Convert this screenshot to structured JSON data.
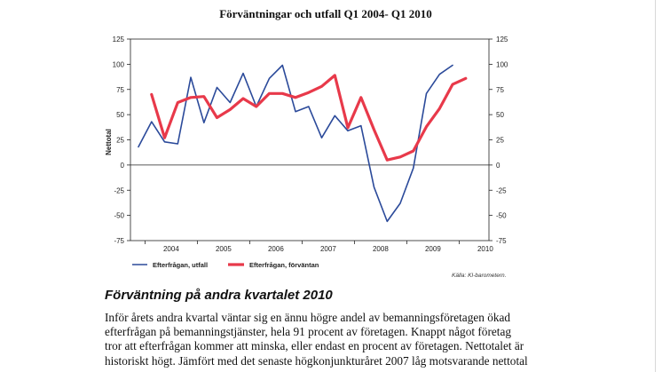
{
  "chart_data": {
    "type": "line",
    "title": "Förväntningar och utfall Q1 2004- Q1 2010",
    "ylabel": "Nettotal",
    "xlabel": "",
    "ylim": [
      -75,
      125
    ],
    "yticks": [
      125,
      100,
      75,
      50,
      25,
      0,
      -25,
      -50,
      -75
    ],
    "xtick_labels": [
      "2004",
      "2005",
      "2006",
      "2007",
      "2008",
      "2009",
      "2010"
    ],
    "grid": false,
    "legend_position": "bottom-left",
    "source": "Källa: KI-barometern.",
    "series": [
      {
        "name": "Efterfrågan, utfall",
        "color": "#2b4a9a",
        "x": [
          "2003Q4",
          "2004Q1",
          "2004Q2",
          "2004Q3",
          "2004Q4",
          "2005Q1",
          "2005Q2",
          "2005Q3",
          "2005Q4",
          "2006Q1",
          "2006Q2",
          "2006Q3",
          "2006Q4",
          "2007Q1",
          "2007Q2",
          "2007Q3",
          "2007Q4",
          "2008Q1",
          "2008Q2",
          "2008Q3",
          "2008Q4",
          "2009Q1",
          "2009Q2",
          "2009Q3",
          "2009Q4",
          "2010Q1"
        ],
        "values": [
          18,
          43,
          23,
          21,
          87,
          42,
          77,
          62,
          91,
          58,
          86,
          99,
          53,
          58,
          27,
          49,
          34,
          39,
          -22,
          -56,
          -38,
          -3,
          71,
          90,
          99,
          null
        ]
      },
      {
        "name": "Efterfrågan, förväntan",
        "color": "#e8394a",
        "x": [
          "2003Q4",
          "2004Q1",
          "2004Q2",
          "2004Q3",
          "2004Q4",
          "2005Q1",
          "2005Q2",
          "2005Q3",
          "2005Q4",
          "2006Q1",
          "2006Q2",
          "2006Q3",
          "2006Q4",
          "2007Q1",
          "2007Q2",
          "2007Q3",
          "2007Q4",
          "2008Q1",
          "2008Q2",
          "2008Q3",
          "2008Q4",
          "2009Q1",
          "2009Q2",
          "2009Q3",
          "2009Q4",
          "2010Q1"
        ],
        "values": [
          null,
          70,
          27,
          62,
          67,
          68,
          47,
          55,
          66,
          58,
          71,
          71,
          67,
          72,
          78,
          89,
          37,
          67,
          35,
          5,
          8,
          14,
          38,
          56,
          80,
          86
        ]
      }
    ]
  },
  "text": {
    "heading": "Förväntning på andra kvartalet 2010",
    "lines": [
      "Inför årets andra kvartal väntar sig en ännu högre andel av bemanningsföretagen ökad",
      "efterfrågan på bemanningstjänster, hela 91 procent av företagen. Knappt något företag",
      "tror att efterfrågan kommer att minska, eller endast en procent av företagen. Nettotalet är",
      "historiskt högt. Jämfört med det senaste högkonjunkturåret 2007 låg motsvarande nettotal"
    ]
  }
}
